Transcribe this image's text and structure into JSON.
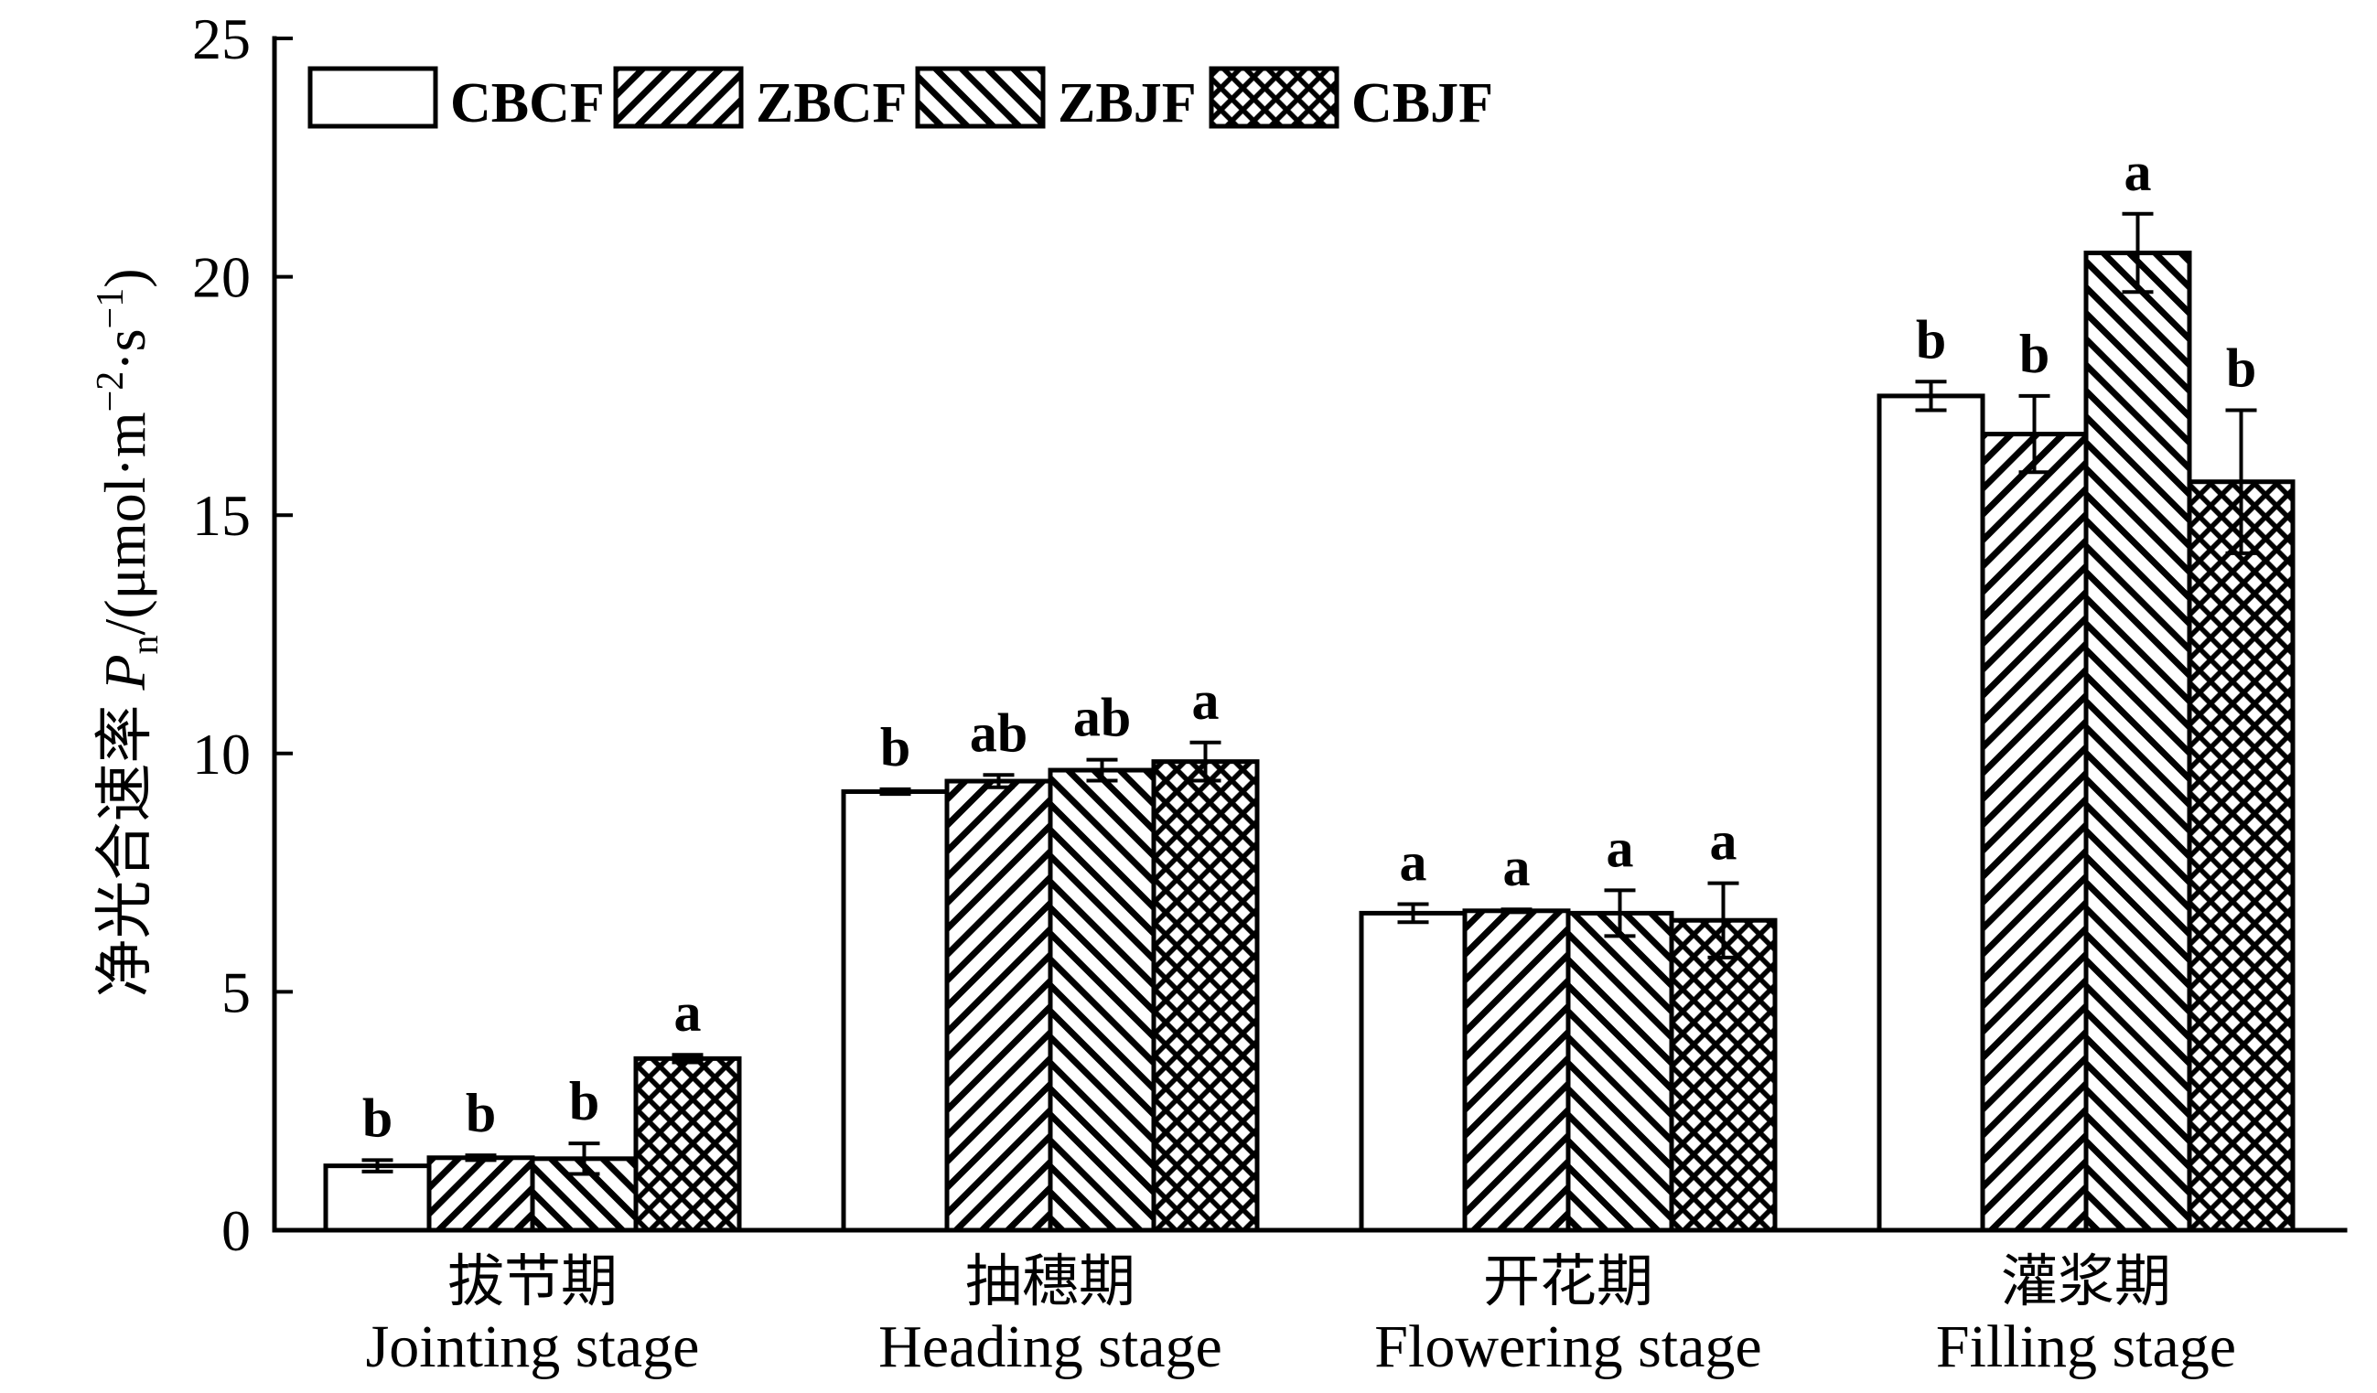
{
  "chart_data": {
    "type": "bar",
    "categories": [
      "Jointing stage",
      "Heading stage",
      "Flowering stage",
      "Filling stage"
    ],
    "categories_zh": [
      "拔节期",
      "抽穗期",
      "开花期",
      "灌浆期"
    ],
    "ylabel": "净光合速率 Pn/(μmol·m−2·s−1)",
    "ylim": [
      0,
      25
    ],
    "yticks": [
      0,
      5,
      10,
      15,
      20,
      25
    ],
    "grid": false,
    "legend": "top-left",
    "series": [
      {
        "name": "CBCF",
        "pattern": "none",
        "values": [
          1.35,
          9.2,
          6.65,
          17.5
        ],
        "errors": [
          0.12,
          0.05,
          0.19,
          0.3
        ],
        "letters": [
          "b",
          "b",
          "a",
          "b"
        ]
      },
      {
        "name": "ZBCF",
        "pattern": "hatch-forward",
        "values": [
          1.52,
          9.42,
          6.7,
          16.7
        ],
        "errors": [
          0.05,
          0.13,
          0.03,
          0.8
        ],
        "letters": [
          "b",
          "ab",
          "a",
          "b"
        ]
      },
      {
        "name": "ZBJF",
        "pattern": "hatch-backward",
        "values": [
          1.5,
          9.65,
          6.65,
          20.5
        ],
        "errors": [
          0.32,
          0.22,
          0.48,
          0.82
        ],
        "letters": [
          "b",
          "ab",
          "a",
          "a"
        ]
      },
      {
        "name": "CBJF",
        "pattern": "crosshatch",
        "values": [
          3.6,
          9.83,
          6.5,
          15.7
        ],
        "errors": [
          0.08,
          0.4,
          0.78,
          1.5
        ],
        "letters": [
          "a",
          "a",
          "a",
          "b"
        ]
      }
    ]
  },
  "colors": {
    "bar_outline": "#000000",
    "bar_fill": "#ffffff",
    "axis": "#000000"
  }
}
